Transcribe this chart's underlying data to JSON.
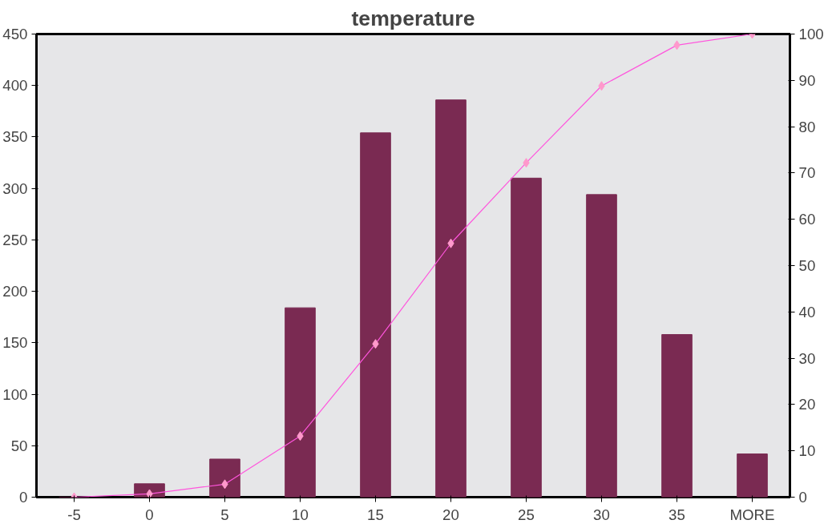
{
  "chart_data": {
    "type": "bar",
    "title": "temperature",
    "categories": [
      "-5",
      "0",
      "5",
      "10",
      "15",
      "20",
      "25",
      "30",
      "35",
      "MORE"
    ],
    "series": [
      {
        "color": "#7a2a52",
        "values": [
          0,
          13,
          37,
          184,
          354,
          386,
          310,
          294,
          158,
          42
        ]
      },
      {
        "type": "line",
        "axis": "y2",
        "color": "#ff55dd",
        "marker": "diamond",
        "values": [
          0,
          0.7,
          2.8,
          13.2,
          33.1,
          54.8,
          72.2,
          88.8,
          97.6,
          100
        ]
      }
    ],
    "ylim": [
      0,
      450
    ],
    "yticks": [
      0,
      50,
      100,
      150,
      200,
      250,
      300,
      350,
      400,
      450
    ],
    "y2lim": [
      0,
      100
    ],
    "y2ticks": [
      0,
      10,
      20,
      30,
      40,
      50,
      60,
      70,
      80,
      90,
      100
    ],
    "grid": false
  }
}
